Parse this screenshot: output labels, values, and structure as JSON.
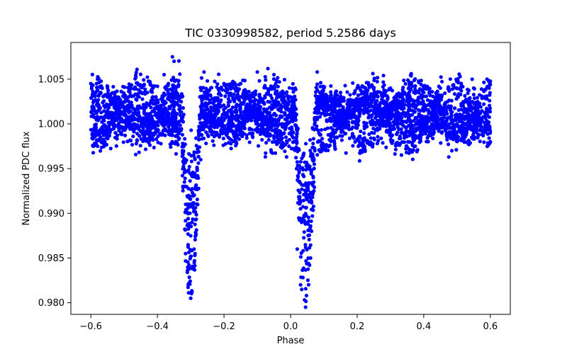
{
  "chart_data": {
    "type": "scatter",
    "title": "TIC 0330998582, period 5.2586 days",
    "xlabel": "Phase",
    "ylabel": "Normalized PDC flux",
    "xlim": [
      -0.66,
      0.66
    ],
    "ylim": [
      0.9787,
      1.0091
    ],
    "xticks": [
      -0.6,
      -0.4,
      -0.2,
      0.0,
      0.2,
      0.4,
      0.6
    ],
    "xtick_labels": [
      "−0.6",
      "−0.4",
      "−0.2",
      "0.0",
      "0.2",
      "0.4",
      "0.6"
    ],
    "yticks": [
      0.98,
      0.985,
      0.99,
      0.995,
      1.0,
      1.005
    ],
    "ytick_labels": [
      "0.980",
      "0.985",
      "0.990",
      "0.995",
      "1.000",
      "1.005"
    ],
    "grid": false,
    "marker_color": "#0000ff",
    "series": [
      {
        "x_range": [
          -0.6,
          0.6
        ],
        "baseline": 1.001,
        "baseline_scatter": 0.0022,
        "eclipses": [
          {
            "phase": -0.3,
            "min_flux": 0.9805,
            "half_width": 0.028
          },
          {
            "phase": 0.045,
            "min_flux": 0.9795,
            "half_width": 0.03
          }
        ],
        "samples": [
          [
            -0.6,
            1.0045
          ],
          [
            -0.59,
            0.9995
          ],
          [
            -0.58,
            1.005
          ],
          [
            -0.55,
            1.004
          ],
          [
            -0.5,
            1.003
          ],
          [
            -0.45,
            1.0035
          ],
          [
            -0.4,
            1.0042
          ],
          [
            -0.38,
            1.0055
          ],
          [
            -0.355,
            1.0075
          ],
          [
            -0.35,
            1.007
          ],
          [
            -0.34,
            0.9995
          ],
          [
            -0.325,
            0.997
          ],
          [
            -0.315,
            0.991
          ],
          [
            -0.3,
            0.9805
          ],
          [
            -0.29,
            0.986
          ],
          [
            -0.28,
            0.991
          ],
          [
            -0.27,
            0.996
          ],
          [
            -0.26,
            1.0058
          ],
          [
            -0.25,
            1.0048
          ],
          [
            -0.2,
            1.0045
          ],
          [
            -0.15,
            1.0045
          ],
          [
            -0.1,
            1.0058
          ],
          [
            -0.05,
            1.0055
          ],
          [
            -0.02,
            1.003
          ],
          [
            0.0,
            0.9995
          ],
          [
            0.01,
            0.998
          ],
          [
            0.02,
            0.986
          ],
          [
            0.03,
            0.982
          ],
          [
            0.045,
            0.9795
          ],
          [
            0.06,
            0.985
          ],
          [
            0.07,
            0.9925
          ],
          [
            0.08,
            1.0058
          ],
          [
            0.1,
            1.004
          ],
          [
            0.15,
            1.0035
          ],
          [
            0.2,
            1.004
          ],
          [
            0.21,
            0.997
          ],
          [
            0.25,
            1.004
          ],
          [
            0.3,
            1.004
          ],
          [
            0.35,
            1.003
          ],
          [
            0.4,
            1.0035
          ],
          [
            0.45,
            1.004
          ],
          [
            0.5,
            1.004
          ],
          [
            0.55,
            1.004
          ],
          [
            0.59,
            1.005
          ],
          [
            0.6,
            0.998
          ]
        ]
      }
    ]
  }
}
